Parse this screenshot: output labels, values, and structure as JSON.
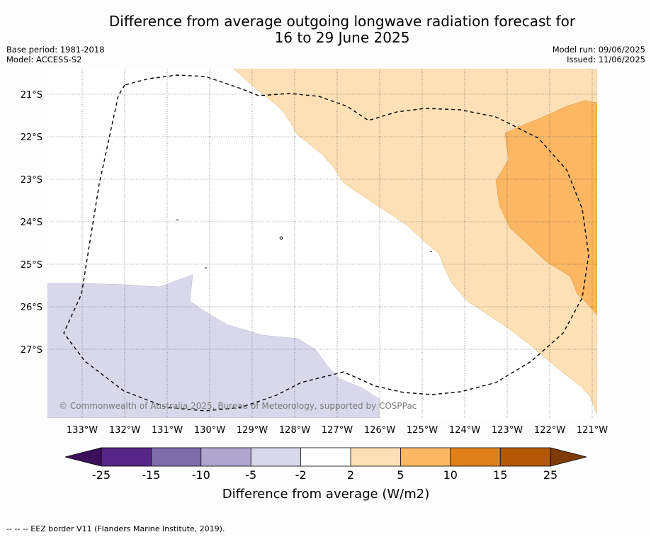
{
  "title": {
    "line1": "Difference from average outgoing longwave radiation forecast for",
    "line2": "16 to 29 June 2025"
  },
  "meta": {
    "base_period": "Base period: 1981-2018",
    "model": "Model: ACCESS-S2",
    "model_run": "Model run: 09/06/2025",
    "issued": "Issued: 11/06/2025"
  },
  "map": {
    "lon_labels": [
      "133°W",
      "132°W",
      "131°W",
      "130°W",
      "129°W",
      "128°W",
      "127°W",
      "126°W",
      "125°W",
      "124°W",
      "123°W",
      "122°W",
      "121°W"
    ],
    "lat_labels": [
      "21°S",
      "22°S",
      "23°S",
      "24°S",
      "25°S",
      "26°S",
      "27°S"
    ],
    "copyright": "© Commonwealth of Australia 2025, Bureau of Meteorology, supported by COSPPac",
    "colors": {
      "minus_2_5": "#d8d8ea",
      "plus_2_5": "#fde0b5",
      "plus_5_10": "#fbb762",
      "border": "#000000"
    }
  },
  "colorbar": {
    "ticks": [
      "-25",
      "-15",
      "-10",
      "-5",
      "-2",
      "2",
      "5",
      "10",
      "15",
      "25"
    ],
    "colors": [
      "#3b0f5c",
      "#552587",
      "#7d6ea9",
      "#aea6cf",
      "#d8d8ea",
      "#ffffff",
      "#fde0b5",
      "#fbb762",
      "#e0801a",
      "#b35806",
      "#7f3b08"
    ],
    "label": "Difference from average (W/m2)"
  },
  "footnote": "--  --  -- EEZ border V11 (Flanders Marine Institute, 2019)."
}
